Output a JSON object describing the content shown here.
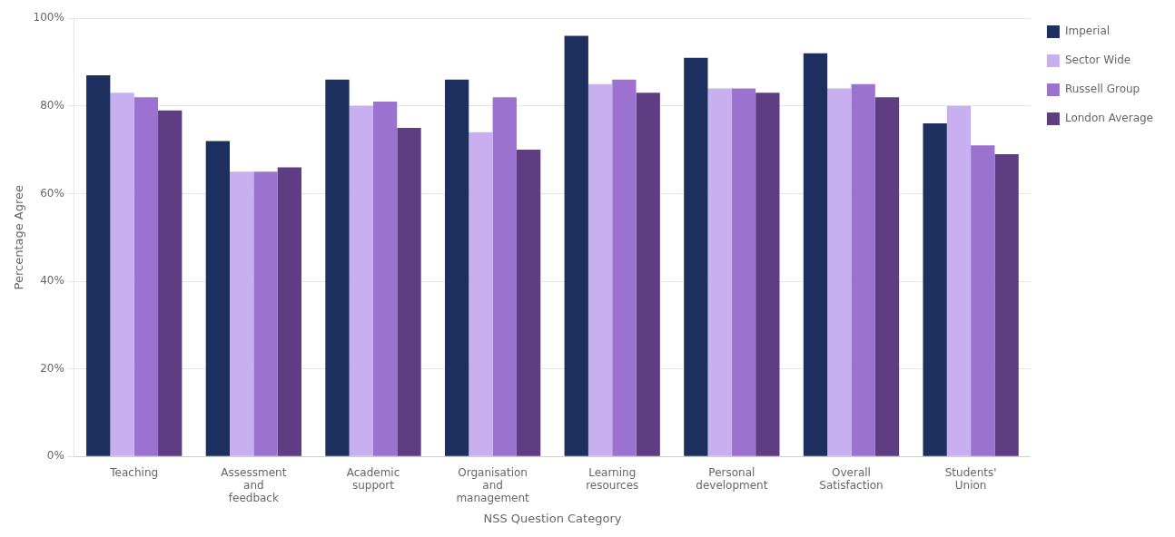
{
  "chart_data": {
    "type": "bar",
    "categories": [
      "Teaching",
      "Assessment\nand\nfeedback",
      "Academic\nsupport",
      "Organisation\nand\nmanagement",
      "Learning\nresources",
      "Personal\ndevelopment",
      "Overall\nSatisfaction",
      "Students'\nUnion"
    ],
    "series": [
      {
        "name": "Imperial",
        "color": "#1c2f5e",
        "values": [
          87,
          72,
          86,
          86,
          96,
          91,
          92,
          76
        ]
      },
      {
        "name": "Sector Wide",
        "color": "#c8aff0",
        "values": [
          83,
          65,
          80,
          74,
          85,
          84,
          84,
          80
        ]
      },
      {
        "name": "Russell Group",
        "color": "#9b72cf",
        "values": [
          82,
          65,
          81,
          82,
          86,
          84,
          85,
          71
        ]
      },
      {
        "name": "London Average",
        "color": "#5e3d82",
        "values": [
          79,
          66,
          75,
          70,
          83,
          83,
          82,
          69
        ]
      }
    ],
    "xlabel": "NSS Question Category",
    "ylabel": "Percentage Agree",
    "ylim": [
      0,
      100
    ],
    "yticks": [
      {
        "value": 0,
        "label": "0%"
      },
      {
        "value": 20,
        "label": "20%"
      },
      {
        "value": 40,
        "label": "40%"
      },
      {
        "value": 60,
        "label": "60%"
      },
      {
        "value": 80,
        "label": "80%"
      },
      {
        "value": 100,
        "label": "100%"
      }
    ],
    "grid": true,
    "legend": "right"
  }
}
